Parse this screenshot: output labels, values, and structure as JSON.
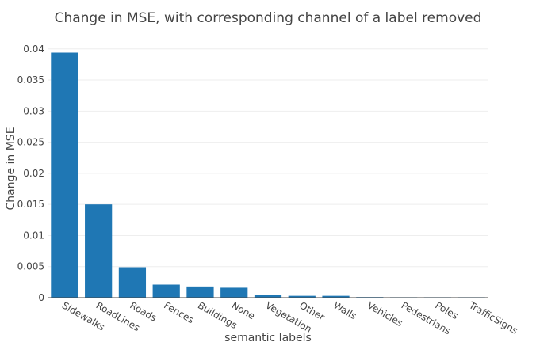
{
  "chart_data": {
    "type": "bar",
    "title": "Change in MSE, with corresponding channel of a label removed",
    "xlabel": "semantic labels",
    "ylabel": "Change in MSE",
    "ylim": [
      0,
      0.0415
    ],
    "yticks": [
      "0",
      "0.005",
      "0.01",
      "0.015",
      "0.02",
      "0.025",
      "0.03",
      "0.035",
      "0.04"
    ],
    "categories": [
      "Sidewalks",
      "RoadLines",
      "Roads",
      "Fences",
      "Buildings",
      "None",
      "Vegetation",
      "Other",
      "Walls",
      "Vehicles",
      "Pedestrians",
      "Poles",
      "TrafficSigns"
    ],
    "values": [
      0.0394,
      0.015,
      0.0049,
      0.0021,
      0.0018,
      0.0016,
      0.0004,
      0.0003,
      0.0003,
      0.0001,
      5e-05,
      3e-05,
      2e-05
    ],
    "grid": true,
    "legend": "none",
    "bar_color": "#1f77b4"
  }
}
